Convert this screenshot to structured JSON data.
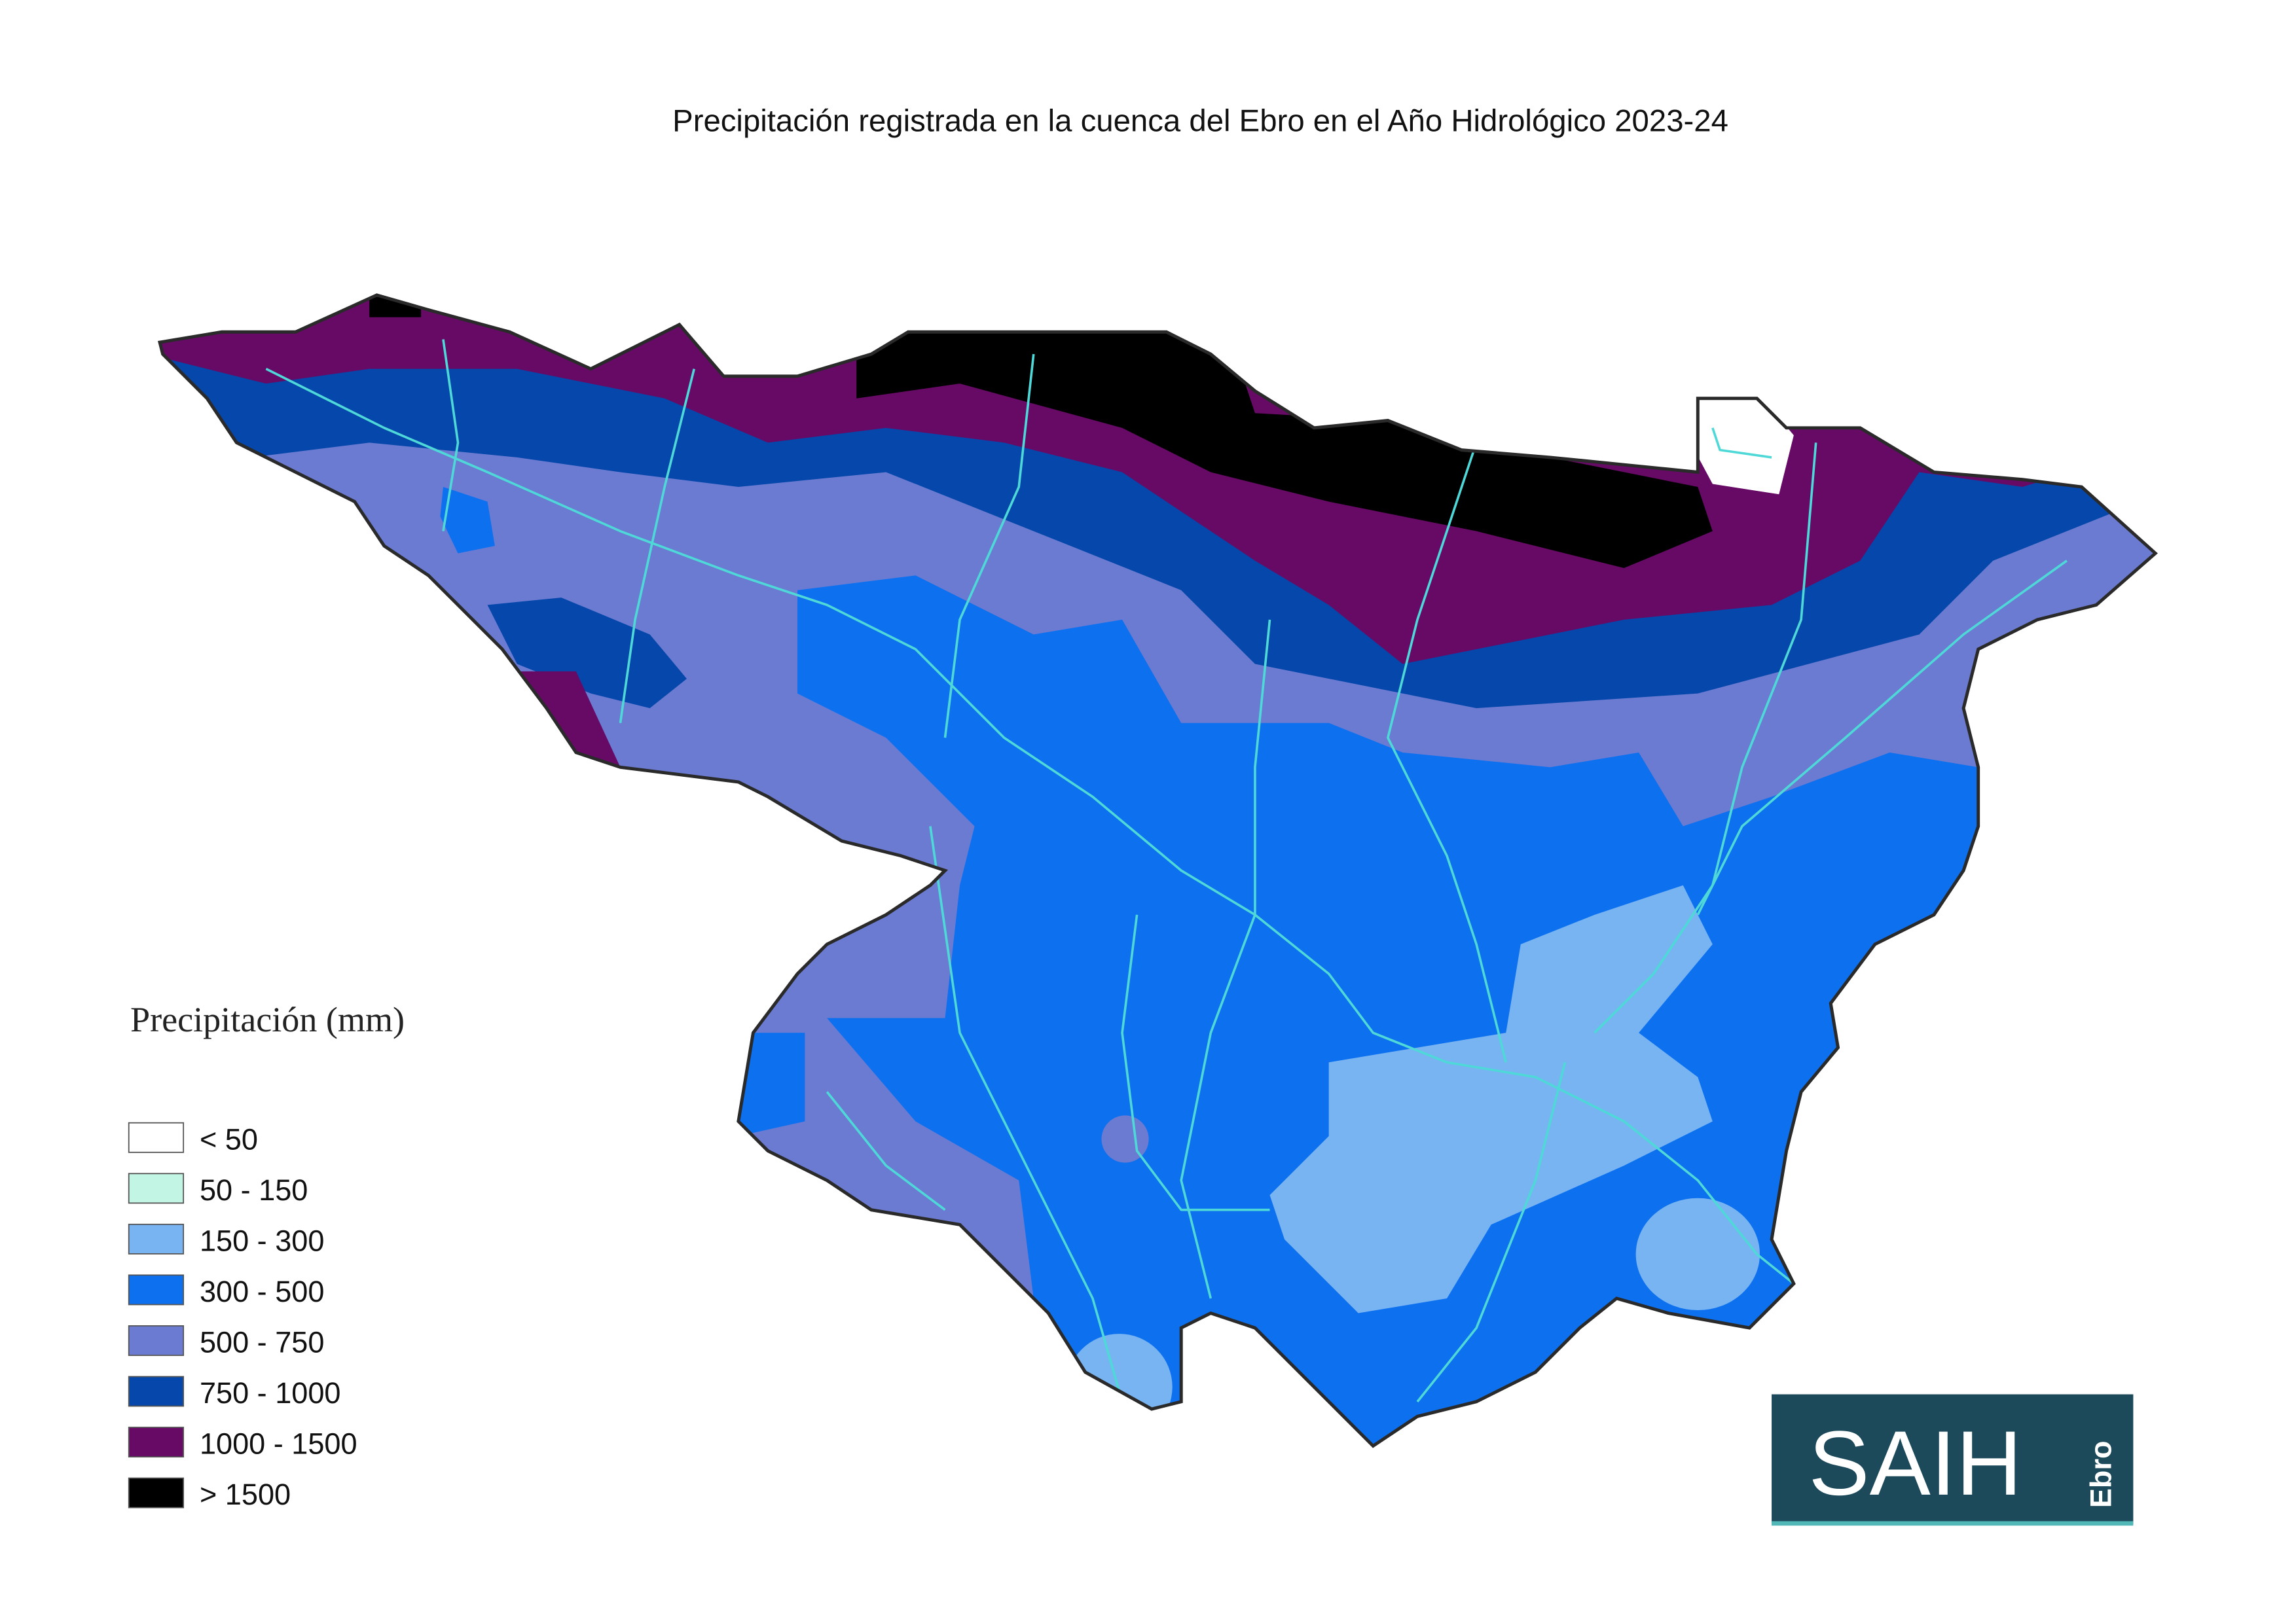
{
  "title": "Precipitación registrada  en la cuenca del Ebro en el Año Hidrológico 2023-24",
  "legend": {
    "title": "Precipitación (mm)",
    "items": [
      {
        "label": "< 50",
        "color": "#ffffff"
      },
      {
        "label": "50 - 150",
        "color": "#c2f5e3"
      },
      {
        "label": "150 - 300",
        "color": "#78b4f2"
      },
      {
        "label": "300 - 500",
        "color": "#0c70ef"
      },
      {
        "label": "500 - 750",
        "color": "#6a7bd1"
      },
      {
        "label": "750 - 1000",
        "color": "#0547aa"
      },
      {
        "label": "1000 - 1500",
        "color": "#660a66"
      },
      {
        "label": "> 1500",
        "color": "#000000"
      }
    ]
  },
  "logo": {
    "text": "SAIH",
    "subtext": "Ebro"
  }
}
